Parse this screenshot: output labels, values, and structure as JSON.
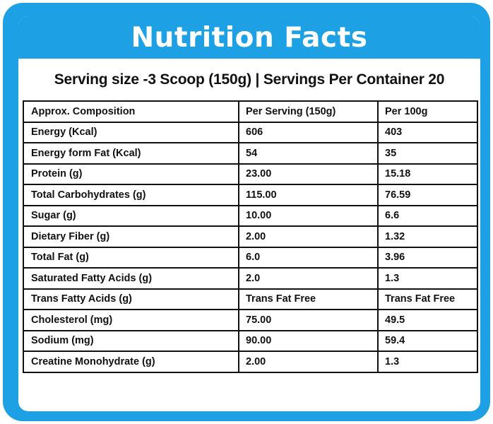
{
  "header": {
    "title": "Nutrition Facts"
  },
  "serving_line": "Serving size -3 Scoop (150g) |  Servings Per Container 20",
  "table": {
    "headers": [
      "Approx. Composition",
      "Per Serving  (150g)",
      "Per 100g"
    ],
    "rows": [
      [
        "Energy (Kcal)",
        "606",
        "403"
      ],
      [
        "Energy form Fat (Kcal)",
        "54",
        "35"
      ],
      [
        "Protein (g)",
        "23.00",
        "15.18"
      ],
      [
        "Total Carbohydrates (g)",
        "115.00",
        "76.59"
      ],
      [
        "Sugar (g)",
        "10.00",
        "6.6"
      ],
      [
        "Dietary Fiber (g)",
        "2.00",
        "1.32"
      ],
      [
        "Total Fat (g)",
        "6.0",
        "3.96"
      ],
      [
        "Saturated Fatty Acids (g)",
        "2.0",
        "1.3"
      ],
      [
        "Trans Fatty Acids (g)",
        "Trans Fat Free",
        "Trans Fat Free"
      ],
      [
        "Cholesterol (mg)",
        "75.00",
        "49.5"
      ],
      [
        "Sodium (mg)",
        "90.00",
        "59.4"
      ],
      [
        "Creatine Monohydrate (g)",
        "2.00",
        "1.3"
      ]
    ]
  },
  "colors": {
    "frame": "#1da1e4",
    "text": "#111111",
    "background": "#ffffff"
  }
}
